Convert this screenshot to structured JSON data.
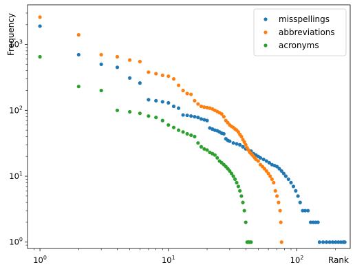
{
  "chart_data": {
    "type": "scatter",
    "x_scale": "log",
    "y_scale": "log",
    "xlabel": "Rank",
    "ylabel": "Frequency",
    "xlim": [
      0.8,
      260
    ],
    "ylim": [
      0.8,
      4000
    ],
    "grid": false,
    "legend_position": "top-right",
    "x_ticks": [
      1,
      10,
      100
    ],
    "x_tick_labels": [
      {
        "base": "10",
        "exp": "0"
      },
      {
        "base": "10",
        "exp": "1"
      },
      {
        "base": "10",
        "exp": "2"
      }
    ],
    "y_ticks": [
      1,
      10,
      100,
      1000
    ],
    "y_tick_labels": [
      {
        "base": "10",
        "exp": "0"
      },
      {
        "base": "10",
        "exp": "1"
      },
      {
        "base": "10",
        "exp": "2"
      },
      {
        "base": "10",
        "exp": "3"
      }
    ],
    "series": [
      {
        "name": "misspellings",
        "color": "#1f77b4",
        "points": [
          [
            1,
            1900
          ],
          [
            2,
            700
          ],
          [
            3,
            500
          ],
          [
            4,
            450
          ],
          [
            5,
            310
          ],
          [
            6,
            260
          ],
          [
            7,
            145
          ],
          [
            8,
            140
          ],
          [
            9,
            135
          ],
          [
            10,
            130
          ],
          [
            11,
            115
          ],
          [
            12,
            108
          ],
          [
            13,
            85
          ],
          [
            14,
            84
          ],
          [
            15,
            82
          ],
          [
            16,
            80
          ],
          [
            17,
            78
          ],
          [
            18,
            74
          ],
          [
            19,
            72
          ],
          [
            20,
            70
          ],
          [
            21,
            54
          ],
          [
            22,
            52
          ],
          [
            23,
            50
          ],
          [
            24,
            49
          ],
          [
            25,
            47
          ],
          [
            26,
            45
          ],
          [
            27,
            44
          ],
          [
            28,
            37
          ],
          [
            29,
            35
          ],
          [
            30,
            34
          ],
          [
            32,
            32
          ],
          [
            34,
            31
          ],
          [
            36,
            30
          ],
          [
            38,
            28
          ],
          [
            40,
            26
          ],
          [
            42,
            25
          ],
          [
            44,
            24
          ],
          [
            46,
            22
          ],
          [
            48,
            21
          ],
          [
            50,
            20
          ],
          [
            52,
            19
          ],
          [
            55,
            18
          ],
          [
            58,
            17
          ],
          [
            61,
            16
          ],
          [
            64,
            15
          ],
          [
            67,
            14.5
          ],
          [
            70,
            14
          ],
          [
            73,
            13
          ],
          [
            76,
            12
          ],
          [
            79,
            11
          ],
          [
            82,
            10
          ],
          [
            86,
            9
          ],
          [
            90,
            8
          ],
          [
            94,
            7
          ],
          [
            98,
            6
          ],
          [
            102,
            5
          ],
          [
            106,
            4
          ],
          [
            111,
            3
          ],
          [
            116,
            3
          ],
          [
            122,
            3
          ],
          [
            128,
            2
          ],
          [
            134,
            2
          ],
          [
            140,
            2
          ],
          [
            146,
            2
          ],
          [
            150,
            1
          ],
          [
            160,
            1
          ],
          [
            170,
            1
          ],
          [
            180,
            1
          ],
          [
            190,
            1
          ],
          [
            200,
            1
          ],
          [
            210,
            1
          ],
          [
            220,
            1
          ],
          [
            230,
            1
          ],
          [
            236,
            1
          ]
        ]
      },
      {
        "name": "abbreviations",
        "color": "#ff7f0e",
        "points": [
          [
            1,
            2600
          ],
          [
            2,
            1400
          ],
          [
            3,
            700
          ],
          [
            4,
            650
          ],
          [
            5,
            580
          ],
          [
            6,
            550
          ],
          [
            7,
            380
          ],
          [
            8,
            360
          ],
          [
            9,
            340
          ],
          [
            10,
            330
          ],
          [
            11,
            300
          ],
          [
            12,
            240
          ],
          [
            13,
            200
          ],
          [
            14,
            180
          ],
          [
            15,
            175
          ],
          [
            16,
            140
          ],
          [
            17,
            125
          ],
          [
            18,
            115
          ],
          [
            19,
            112
          ],
          [
            20,
            110
          ],
          [
            21,
            108
          ],
          [
            22,
            105
          ],
          [
            23,
            100
          ],
          [
            24,
            96
          ],
          [
            25,
            92
          ],
          [
            26,
            88
          ],
          [
            27,
            80
          ],
          [
            28,
            70
          ],
          [
            29,
            65
          ],
          [
            30,
            60
          ],
          [
            31,
            57
          ],
          [
            32,
            55
          ],
          [
            33,
            52
          ],
          [
            34,
            50
          ],
          [
            35,
            47
          ],
          [
            36,
            43
          ],
          [
            37,
            40
          ],
          [
            38,
            36
          ],
          [
            39,
            33
          ],
          [
            40,
            30
          ],
          [
            41,
            27
          ],
          [
            42,
            25
          ],
          [
            43,
            23
          ],
          [
            44,
            22
          ],
          [
            45,
            21
          ],
          [
            46,
            20
          ],
          [
            47,
            19
          ],
          [
            48,
            18
          ],
          [
            50,
            17
          ],
          [
            52,
            15
          ],
          [
            54,
            14
          ],
          [
            56,
            13
          ],
          [
            58,
            12
          ],
          [
            60,
            11
          ],
          [
            62,
            10
          ],
          [
            64,
            9
          ],
          [
            66,
            8
          ],
          [
            68,
            6
          ],
          [
            70,
            5
          ],
          [
            72,
            4
          ],
          [
            74,
            3
          ],
          [
            75,
            2
          ],
          [
            76,
            1
          ]
        ]
      },
      {
        "name": "acronyms",
        "color": "#2ca02c",
        "points": [
          [
            1,
            650
          ],
          [
            2,
            230
          ],
          [
            3,
            200
          ],
          [
            4,
            100
          ],
          [
            5,
            95
          ],
          [
            6,
            90
          ],
          [
            7,
            82
          ],
          [
            8,
            78
          ],
          [
            9,
            70
          ],
          [
            10,
            60
          ],
          [
            11,
            55
          ],
          [
            12,
            50
          ],
          [
            13,
            47
          ],
          [
            14,
            44
          ],
          [
            15,
            42
          ],
          [
            16,
            40
          ],
          [
            17,
            32
          ],
          [
            18,
            28
          ],
          [
            19,
            26
          ],
          [
            20,
            25
          ],
          [
            21,
            23
          ],
          [
            22,
            22
          ],
          [
            23,
            21
          ],
          [
            24,
            19
          ],
          [
            25,
            17
          ],
          [
            26,
            16
          ],
          [
            27,
            15
          ],
          [
            28,
            14
          ],
          [
            29,
            13
          ],
          [
            30,
            12
          ],
          [
            31,
            11
          ],
          [
            32,
            10
          ],
          [
            33,
            9
          ],
          [
            34,
            8
          ],
          [
            35,
            7
          ],
          [
            36,
            6
          ],
          [
            37,
            5
          ],
          [
            38,
            4
          ],
          [
            39,
            3
          ],
          [
            40,
            2
          ],
          [
            41,
            1
          ],
          [
            42,
            1
          ],
          [
            43,
            1
          ],
          [
            44,
            1
          ]
        ]
      }
    ]
  }
}
